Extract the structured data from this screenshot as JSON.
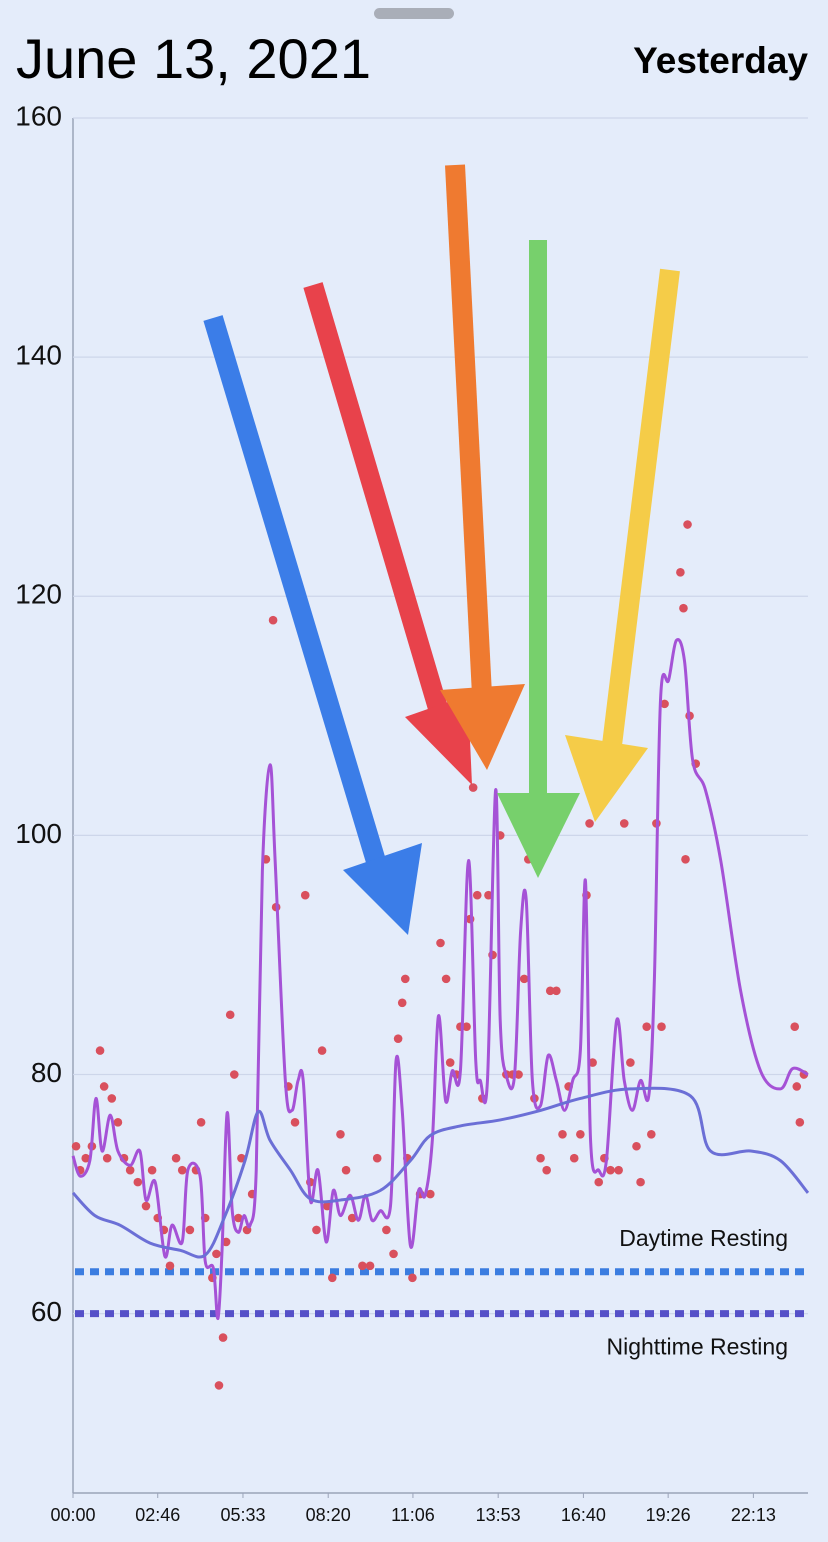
{
  "header": {
    "title": "June 13, 2021",
    "subtitle": "Yesterday"
  },
  "chart_data": {
    "type": "scatter",
    "xlim": [
      0,
      1440
    ],
    "xticks": [
      {
        "value": 0,
        "label": "00:00"
      },
      {
        "value": 166,
        "label": "02:46"
      },
      {
        "value": 333,
        "label": "05:33"
      },
      {
        "value": 500,
        "label": "08:20"
      },
      {
        "value": 666,
        "label": "11:06"
      },
      {
        "value": 833,
        "label": "13:53"
      },
      {
        "value": 1000,
        "label": "16:40"
      },
      {
        "value": 1166,
        "label": "19:26"
      },
      {
        "value": 1333,
        "label": "22:13"
      }
    ],
    "ylim": [
      45,
      160
    ],
    "yticks": [
      60,
      80,
      100,
      120,
      140,
      160
    ],
    "grid": true,
    "series": [
      {
        "type": "scatter",
        "color": "#d9505d",
        "x": [
          6,
          14,
          25,
          37,
          53,
          61,
          67,
          76,
          88,
          100,
          112,
          127,
          143,
          155,
          166,
          178,
          190,
          202,
          214,
          229,
          241,
          251,
          259,
          273,
          281,
          286,
          294,
          300,
          308,
          316,
          324,
          330,
          341,
          351,
          378,
          392,
          398,
          422,
          435,
          455,
          465,
          477,
          488,
          498,
          508,
          524,
          535,
          547,
          567,
          582,
          596,
          614,
          628,
          637,
          645,
          651,
          655,
          665,
          680,
          700,
          720,
          731,
          739,
          751,
          759,
          771,
          778,
          784,
          792,
          802,
          814,
          822,
          837,
          849,
          861,
          873,
          884,
          892,
          904,
          916,
          928,
          935,
          947,
          959,
          971,
          982,
          994,
          1006,
          1012,
          1018,
          1030,
          1041,
          1053,
          1069,
          1080,
          1092,
          1104,
          1112,
          1124,
          1133,
          1143,
          1153,
          1159,
          1190,
          1196,
          1200,
          1204,
          1208,
          1220,
          1414,
          1418,
          1424,
          1432
        ],
        "values": [
          74,
          72,
          73,
          74,
          82,
          79,
          73,
          78,
          76,
          73,
          72,
          71,
          69,
          72,
          68,
          67,
          64,
          73,
          72,
          67,
          72,
          76,
          68,
          63,
          65,
          54,
          58,
          66,
          85,
          80,
          68,
          73,
          67,
          70,
          98,
          118,
          94,
          79,
          76,
          95,
          71,
          67,
          82,
          69,
          63,
          75,
          72,
          68,
          64,
          64,
          73,
          67,
          65,
          83,
          86,
          88,
          73,
          63,
          70,
          70,
          91,
          88,
          81,
          80,
          84,
          84,
          93,
          104,
          95,
          78,
          95,
          90,
          100,
          80,
          80,
          80,
          88,
          98,
          78,
          73,
          72,
          87,
          87,
          75,
          79,
          73,
          75,
          95,
          101,
          81,
          71,
          73,
          72,
          72,
          101,
          81,
          74,
          71,
          84,
          75,
          101,
          84,
          111,
          122,
          119,
          98,
          126,
          110,
          106,
          84,
          79,
          76,
          80
        ]
      },
      {
        "type": "line",
        "color": "#a552d6",
        "x": [
          0,
          14,
          33,
          45,
          57,
          73,
          88,
          112,
          131,
          143,
          161,
          180,
          194,
          214,
          225,
          249,
          259,
          275,
          284,
          292,
          302,
          312,
          324,
          335,
          347,
          359,
          371,
          386,
          396,
          416,
          429,
          441,
          451,
          465,
          480,
          496,
          510,
          524,
          543,
          559,
          573,
          586,
          602,
          622,
          633,
          645,
          661,
          677,
          690,
          704,
          716,
          730,
          743,
          759,
          775,
          789,
          798,
          812,
          828,
          837,
          849,
          865,
          877,
          888,
          900,
          916,
          931,
          947,
          963,
          979,
          994,
          1004,
          1014,
          1030,
          1045,
          1065,
          1080,
          1096,
          1112,
          1128,
          1139,
          1151,
          1167,
          1182,
          1198,
          1214,
          1239,
          1269,
          1308,
          1347,
          1386,
          1410,
          1440
        ],
        "values": [
          73.2,
          71.5,
          72.8,
          78,
          73.6,
          76.6,
          73.6,
          72.4,
          73.6,
          69.5,
          71,
          64.8,
          67.4,
          66,
          72,
          71.5,
          64.4,
          63.8,
          59.6,
          65.3,
          76.8,
          68.6,
          66.8,
          68.2,
          67.4,
          72,
          97,
          105.9,
          97.9,
          79.5,
          77,
          79.5,
          79.5,
          69.5,
          72,
          66,
          70.3,
          68.2,
          69.9,
          67.8,
          69.9,
          67.8,
          68.6,
          69,
          81.2,
          77,
          65.7,
          70.3,
          69.9,
          74.5,
          84.9,
          77.8,
          80.3,
          80.3,
          97.9,
          81.2,
          79.5,
          79.5,
          103.8,
          84.5,
          79.9,
          79.9,
          92,
          94.6,
          79.5,
          77.4,
          81.6,
          79.5,
          77,
          79.5,
          82,
          96.2,
          74.5,
          72,
          72.8,
          84.5,
          79.5,
          77,
          79.5,
          78.2,
          87.9,
          111.3,
          113,
          116.3,
          114.6,
          106.3,
          103.8,
          97.9,
          87,
          80.3,
          78.8,
          80.5,
          80
        ]
      },
      {
        "type": "line",
        "color": "#6b6fd6",
        "x": [
          0,
          43,
          92,
          151,
          210,
          259,
          298,
          337,
          363,
          386,
          426,
          465,
          524,
          602,
          661,
          700,
          759,
          837,
          916,
          994,
          1092,
          1210,
          1249,
          1328,
          1386,
          1440
        ],
        "values": [
          70.1,
          68.2,
          67.4,
          65.9,
          65.3,
          64.9,
          68.2,
          72.8,
          76.9,
          74.5,
          72,
          69.6,
          69.5,
          70.3,
          72.8,
          74.9,
          75.7,
          76.2,
          77,
          78,
          78.8,
          78.2,
          73.6,
          73.6,
          72.8,
          70.1
        ]
      }
    ],
    "reference_lines": [
      {
        "label": "Daytime Resting",
        "value": 63.5,
        "color": "#3b7de0",
        "label_side": "above"
      },
      {
        "label": "Nighttime Resting",
        "value": 60,
        "color": "#5550c8",
        "label_side": "below"
      }
    ]
  }
}
